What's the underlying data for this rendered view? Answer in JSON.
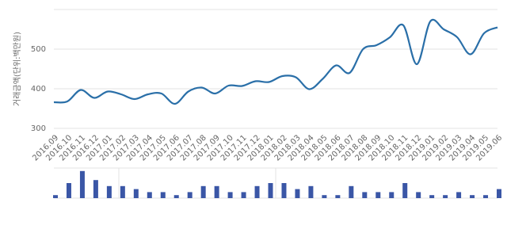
{
  "chart_data": [
    {
      "type": "line",
      "y_label": "거래금액(단위:백만원)",
      "categories": [
        "2016.09",
        "2016.10",
        "2016.11",
        "2016.12",
        "2017.01",
        "2017.02",
        "2017.03",
        "2017.04",
        "2017.05",
        "2017.06",
        "2017.07",
        "2017.08",
        "2017.09",
        "2017.10",
        "2017.11",
        "2017.12",
        "2018.01",
        "2018.02",
        "2018.03",
        "2018.04",
        "2018.05",
        "2018.06",
        "2018.07",
        "2018.08",
        "2018.09",
        "2018.10",
        "2018.11",
        "2018.12",
        "2019.01",
        "2019.02",
        "2019.03",
        "2019.04",
        "2019.05",
        "2019.06"
      ],
      "values": [
        366,
        368,
        397,
        377,
        393,
        386,
        374,
        386,
        388,
        362,
        393,
        403,
        388,
        408,
        407,
        419,
        417,
        432,
        429,
        399,
        425,
        459,
        440,
        500,
        510,
        530,
        560,
        462,
        570,
        550,
        530,
        487,
        540,
        555
      ],
      "color": "#2a6fa8",
      "ylim": [
        300,
        600
      ],
      "yticks": [
        300,
        400,
        500
      ],
      "grid": true
    },
    {
      "type": "bar",
      "values": [
        1,
        5,
        9,
        6,
        4,
        4,
        3,
        2,
        2,
        1,
        2,
        4,
        4,
        2,
        2,
        4,
        5,
        5,
        3,
        4,
        1,
        1,
        4,
        2,
        2,
        2,
        5,
        2,
        1,
        1,
        2,
        1,
        1,
        3
      ],
      "color": "#3a56a6",
      "ylim": [
        0,
        10
      ]
    }
  ]
}
